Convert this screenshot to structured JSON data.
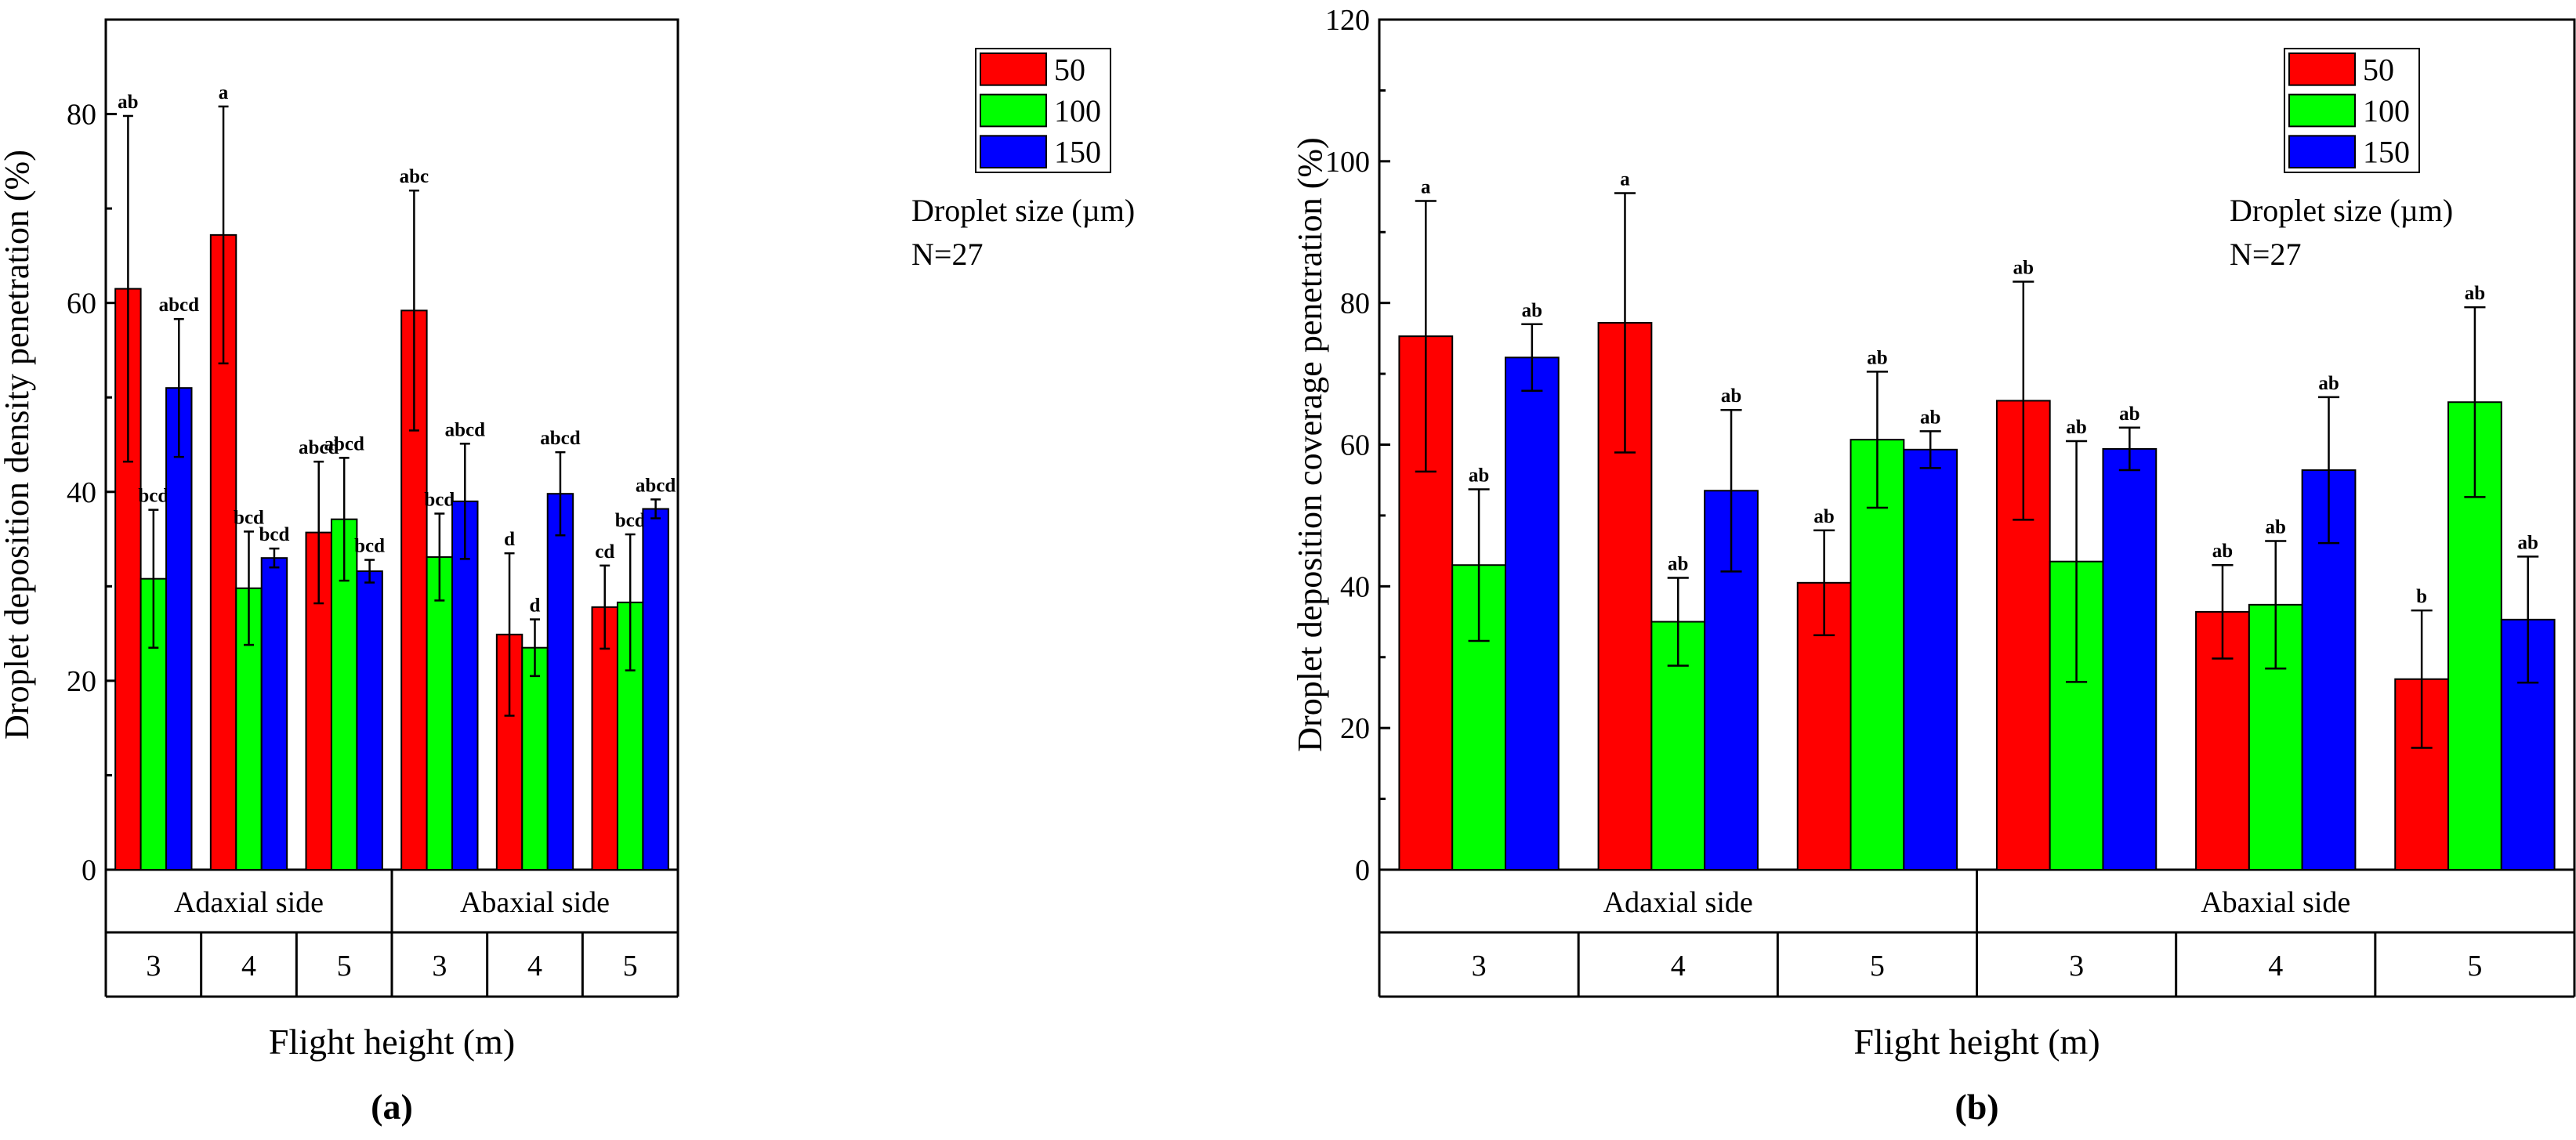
{
  "chart_data": [
    {
      "type": "bar",
      "panel_label": "(a)",
      "ylabel": "Droplet deposition density penetration (%)",
      "xlabel": "Flight height (m)",
      "ylim": [
        0,
        90
      ],
      "yticks": [
        0,
        20,
        40,
        60,
        80
      ],
      "sides": [
        "Adaxial side",
        "Abaxial side"
      ],
      "categories": [
        "3",
        "4",
        "5",
        "3",
        "4",
        "5"
      ],
      "legend_title": "Droplet size (µm)",
      "legend_note": "N=27",
      "legend_position": "top-right",
      "series": [
        {
          "name": "50",
          "color": "#ff0000",
          "values": [
            61.5,
            67.2,
            35.7,
            59.2,
            24.9,
            27.8
          ],
          "errors": [
            18.3,
            13.6,
            7.5,
            12.7,
            8.6,
            4.4
          ],
          "labels": [
            "ab",
            "a",
            "abcd",
            "abc",
            "d",
            "cd"
          ]
        },
        {
          "name": "100",
          "color": "#00ff00",
          "values": [
            30.8,
            29.8,
            37.1,
            33.1,
            23.5,
            28.3
          ],
          "errors": [
            7.3,
            6.0,
            6.5,
            4.6,
            3.0,
            7.2
          ],
          "labels": [
            "bcd",
            "bcd",
            "abcd",
            "bcd",
            "d",
            "bcd"
          ]
        },
        {
          "name": "150",
          "color": "#0000ff",
          "values": [
            51.0,
            33.0,
            31.6,
            39.0,
            39.8,
            38.2
          ],
          "errors": [
            7.3,
            1.0,
            1.2,
            6.1,
            4.4,
            1.0
          ],
          "labels": [
            "abcd",
            "bcd",
            "bcd",
            "abcd",
            "abcd",
            "abcd"
          ]
        }
      ]
    },
    {
      "type": "bar",
      "panel_label": "(b)",
      "ylabel": "Droplet deposition coverage penetration (%)",
      "xlabel": "Flight height (m)",
      "ylim": [
        0,
        120
      ],
      "yticks": [
        0,
        20,
        40,
        60,
        80,
        100,
        120
      ],
      "sides": [
        "Adaxial side",
        "Abaxial side"
      ],
      "categories": [
        "3",
        "4",
        "5",
        "3",
        "4",
        "5"
      ],
      "legend_title": "Droplet size (µm)",
      "legend_note": "N=27",
      "legend_position": "top-right",
      "series": [
        {
          "name": "50",
          "color": "#ff0000",
          "values": [
            75.3,
            77.2,
            40.5,
            66.2,
            36.4,
            26.9
          ],
          "errors": [
            19.1,
            18.3,
            7.4,
            16.8,
            6.6,
            9.7
          ],
          "labels": [
            "a",
            "a",
            "ab",
            "ab",
            "ab",
            "b"
          ]
        },
        {
          "name": "100",
          "color": "#00ff00",
          "values": [
            43.0,
            35.0,
            60.7,
            43.5,
            37.4,
            66.0
          ],
          "errors": [
            10.7,
            6.2,
            9.6,
            17.0,
            9.0,
            13.4
          ],
          "labels": [
            "ab",
            "ab",
            "ab",
            "ab",
            "ab",
            "ab"
          ]
        },
        {
          "name": "150",
          "color": "#0000ff",
          "values": [
            72.3,
            53.5,
            59.3,
            59.4,
            56.4,
            35.3
          ],
          "errors": [
            4.7,
            11.4,
            2.6,
            3.0,
            10.3,
            8.9
          ],
          "labels": [
            "ab",
            "ab",
            "ab",
            "ab",
            "ab",
            "ab"
          ]
        }
      ]
    }
  ]
}
